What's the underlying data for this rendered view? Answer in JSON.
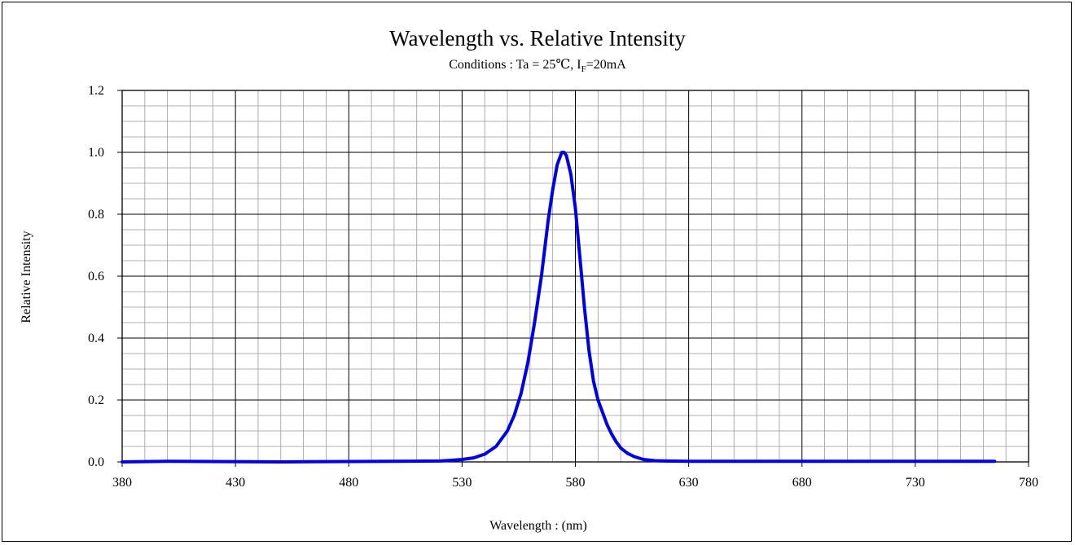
{
  "chart_data": {
    "type": "line",
    "title": "Wavelength vs. Relative Intensity",
    "subtitle_prefix": "Conditions : Ta = 25℃, I",
    "subtitle_subscript": "F",
    "subtitle_suffix": "=20mA",
    "xlabel": "Wavelength : (nm)",
    "ylabel": "Relative Intensity",
    "xlim": [
      380,
      780
    ],
    "ylim": [
      0,
      1.2
    ],
    "x_ticks": [
      380,
      430,
      480,
      530,
      580,
      630,
      680,
      730,
      780
    ],
    "y_ticks": [
      "0.0",
      "0.2",
      "0.4",
      "0.6",
      "0.8",
      "1.0",
      "1.2"
    ],
    "grid": true,
    "line_color": "#0000e6",
    "series": [
      {
        "x": [
          380,
          400,
          450,
          500,
          520,
          525,
          530,
          535,
          540,
          545,
          550,
          553,
          556,
          559,
          562,
          565,
          568,
          570,
          572,
          574,
          575,
          576,
          578,
          580,
          582,
          584,
          586,
          588,
          590,
          592,
          594,
          596,
          598,
          600,
          603,
          606,
          610,
          615,
          620,
          630,
          680,
          730,
          765
        ],
        "y": [
          0.0,
          0.002,
          0.0,
          0.002,
          0.003,
          0.005,
          0.008,
          0.013,
          0.025,
          0.05,
          0.1,
          0.15,
          0.22,
          0.32,
          0.45,
          0.6,
          0.78,
          0.88,
          0.96,
          1.0,
          1.0,
          0.99,
          0.93,
          0.82,
          0.66,
          0.5,
          0.36,
          0.26,
          0.2,
          0.16,
          0.12,
          0.09,
          0.065,
          0.045,
          0.028,
          0.017,
          0.008,
          0.004,
          0.003,
          0.002,
          0.002,
          0.002,
          0.002
        ]
      }
    ]
  }
}
